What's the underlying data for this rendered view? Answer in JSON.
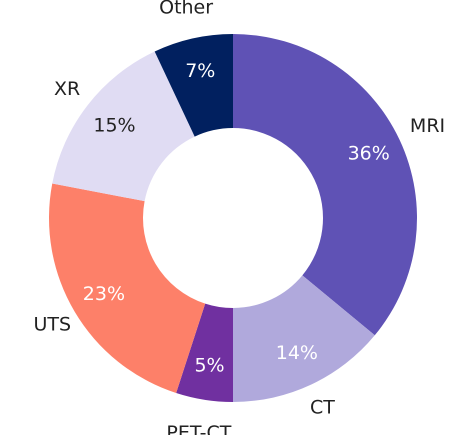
{
  "chart_data": {
    "type": "donut",
    "categories": [
      "MRI",
      "CT",
      "PET-CT",
      "UTS",
      "XR",
      "Other"
    ],
    "values": [
      36,
      14,
      5,
      23,
      15,
      7
    ],
    "value_labels": [
      "36%",
      "14%",
      "5%",
      "23%",
      "15%",
      "7%"
    ],
    "colors": [
      "#5f52b5",
      "#b0a9dc",
      "#7030a0",
      "#fd8069",
      "#e0dcf3",
      "#01205f"
    ],
    "value_label_colors": [
      "#ffffff",
      "#ffffff",
      "#ffffff",
      "#ffffff",
      "#222222",
      "#ffffff"
    ]
  }
}
